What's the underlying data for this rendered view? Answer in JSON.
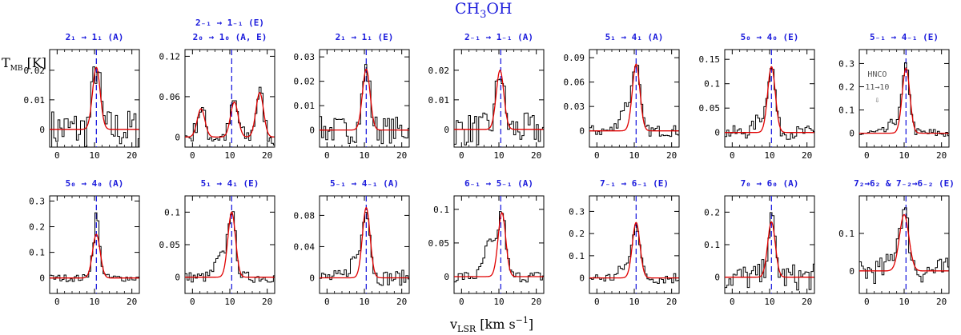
{
  "figure": {
    "title_main": "CH",
    "title_sub": "3",
    "title_end": "OH",
    "ylabel_main": "T",
    "ylabel_sub": "MB",
    "ylabel_unit": " [K]",
    "xlabel_main": "v",
    "xlabel_sub": "LSR",
    "xlabel_unit": " [km s",
    "xlabel_sup": "−1",
    "xlabel_end": "]",
    "colors": {
      "title": "#1a1adc",
      "fit": "#e00000",
      "vline": "#2020e0",
      "spectrum": "#000000"
    }
  },
  "chart_data": [
    {
      "type": "line",
      "title": "2₁ → 1₁ (A)",
      "xlim": [
        -2,
        22
      ],
      "ylim": [
        -0.006,
        0.027
      ],
      "yticks": [
        0,
        0.01,
        0.02
      ],
      "yticklabels": [
        "0",
        "0.01",
        "0.02"
      ],
      "xticks": [
        0,
        10,
        20
      ],
      "vline": 10.5,
      "fit_components": [
        {
          "center": 10.5,
          "amplitude": 0.021,
          "fwhm": 2.4
        }
      ],
      "noise": 0.005
    },
    {
      "type": "line",
      "title": "2₋₁ → 1₋₁ (E)",
      "title2": "2₀ → 1₀ (A, E)",
      "xlim": [
        -2,
        22
      ],
      "ylim": [
        -0.015,
        0.13
      ],
      "yticks": [
        0,
        0.06,
        0.12
      ],
      "yticklabels": [
        "0",
        "0.06",
        "0.12"
      ],
      "xticks": [
        0,
        10,
        20
      ],
      "vline": 10.5,
      "fit_components": [
        {
          "center": 2.3,
          "amplitude": 0.042,
          "fwhm": 2.4
        },
        {
          "center": 11.2,
          "amplitude": 0.052,
          "fwhm": 2.4
        },
        {
          "center": 18.0,
          "amplitude": 0.066,
          "fwhm": 2.4
        }
      ],
      "noise": 0.01
    },
    {
      "type": "line",
      "title": "2₁ → 1₁ (E)",
      "xlim": [
        -2,
        22
      ],
      "ylim": [
        -0.007,
        0.033
      ],
      "yticks": [
        0,
        0.01,
        0.02,
        0.03
      ],
      "yticklabels": [
        "0",
        "0.01",
        "0.02",
        "0.03"
      ],
      "xticks": [
        0,
        10,
        20
      ],
      "vline": 10.5,
      "fit_components": [
        {
          "center": 10.5,
          "amplitude": 0.025,
          "fwhm": 2.4
        }
      ],
      "noise": 0.004
    },
    {
      "type": "line",
      "title": "2₋₁ → 1₋₁ (A)",
      "xlim": [
        -2,
        22
      ],
      "ylim": [
        -0.006,
        0.027
      ],
      "yticks": [
        0,
        0.01,
        0.02
      ],
      "yticklabels": [
        "0",
        "0.01",
        "0.02"
      ],
      "xticks": [
        0,
        10,
        20
      ],
      "vline": 10.5,
      "fit_components": [
        {
          "center": 10.3,
          "amplitude": 0.02,
          "fwhm": 2.4
        }
      ],
      "noise": 0.004
    },
    {
      "type": "line",
      "title": "5₁ → 4₁ (A)",
      "xlim": [
        -2,
        22
      ],
      "ylim": [
        -0.02,
        0.1
      ],
      "yticks": [
        0,
        0.03,
        0.06,
        0.09
      ],
      "yticklabels": [
        "0",
        "0.03",
        "0.06",
        "0.09"
      ],
      "xticks": [
        0,
        10,
        20
      ],
      "vline": 10.5,
      "fit_components": [
        {
          "center": 10.5,
          "amplitude": 0.082,
          "fwhm": 2.4
        }
      ],
      "noise": 0.005,
      "wing": 0.03
    },
    {
      "type": "line",
      "title": "5₀ → 4₀ (E)",
      "xlim": [
        -2,
        22
      ],
      "ylim": [
        -0.03,
        0.17
      ],
      "yticks": [
        0,
        0.05,
        0.1,
        0.15
      ],
      "yticklabels": [
        "0",
        "0.05",
        "0.1",
        "0.15"
      ],
      "xticks": [
        0,
        10,
        20
      ],
      "vline": 10.5,
      "fit_components": [
        {
          "center": 10.5,
          "amplitude": 0.135,
          "fwhm": 2.4
        }
      ],
      "noise": 0.01,
      "wing": 0.03
    },
    {
      "type": "line",
      "title": "5₋₁ → 4₋₁ (E)",
      "xlim": [
        -2,
        22
      ],
      "ylim": [
        -0.06,
        0.36
      ],
      "yticks": [
        0,
        0.1,
        0.2,
        0.3
      ],
      "yticklabels": [
        "0",
        "0.1",
        "0.2",
        "0.3"
      ],
      "xticks": [
        0,
        10,
        20
      ],
      "vline": 10.5,
      "fit_components": [
        {
          "center": 10.5,
          "amplitude": 0.28,
          "fwhm": 2.4
        }
      ],
      "noise": 0.015,
      "wing": 0.05,
      "annotation": {
        "text1": "HNCO",
        "text2": "11→10",
        "x": 2.8,
        "arrow": "⇩"
      }
    },
    {
      "type": "line",
      "title": "5₀ → 4₀ (A)",
      "xlim": [
        -2,
        22
      ],
      "ylim": [
        -0.06,
        0.32
      ],
      "yticks": [
        0,
        0.1,
        0.2,
        0.3
      ],
      "yticklabels": [
        "0",
        "0.1",
        "0.2",
        "0.3"
      ],
      "xticks": [
        0,
        10,
        20
      ],
      "vline": 10.5,
      "fit_components": [
        {
          "center": 10.5,
          "amplitude": 0.17,
          "fwhm": 2.4
        }
      ],
      "noise": 0.01,
      "peak_extra": 0.09
    },
    {
      "type": "line",
      "title": "5₁ → 4₁ (E)",
      "xlim": [
        -2,
        22
      ],
      "ylim": [
        -0.025,
        0.125
      ],
      "yticks": [
        0,
        0.05,
        0.1
      ],
      "yticklabels": [
        "0",
        "0.05",
        "0.1"
      ],
      "xticks": [
        0,
        10,
        20
      ],
      "vline": 10.5,
      "fit_components": [
        {
          "center": 10.5,
          "amplitude": 0.1,
          "fwhm": 2.4
        }
      ],
      "noise": 0.006,
      "wing": 0.03
    },
    {
      "type": "line",
      "title": "5₋₁ → 4₋₁ (A)",
      "xlim": [
        -2,
        22
      ],
      "ylim": [
        -0.02,
        0.105
      ],
      "yticks": [
        0,
        0.04,
        0.08
      ],
      "yticklabels": [
        "0",
        "0.04",
        "0.08"
      ],
      "xticks": [
        0,
        10,
        20
      ],
      "vline": 10.5,
      "fit_components": [
        {
          "center": 10.5,
          "amplitude": 0.09,
          "fwhm": 2.4
        }
      ],
      "noise": 0.007,
      "wing": 0.025
    },
    {
      "type": "line",
      "title": "6₋₁ → 5₋₁ (A)",
      "xlim": [
        -2,
        22
      ],
      "ylim": [
        -0.025,
        0.12
      ],
      "yticks": [
        0,
        0.05,
        0.1
      ],
      "yticklabels": [
        "0",
        "0.05",
        "0.1"
      ],
      "xticks": [
        0,
        10,
        20
      ],
      "vline": 10.5,
      "fit_components": [
        {
          "center": 10.8,
          "amplitude": 0.095,
          "fwhm": 2.4
        }
      ],
      "noise": 0.006,
      "wing": 0.05
    },
    {
      "type": "line",
      "title": "7₋₁ → 6₋₁ (E)",
      "xlim": [
        -2,
        22
      ],
      "ylim": [
        -0.07,
        0.37
      ],
      "yticks": [
        0,
        0.1,
        0.2,
        0.3
      ],
      "yticklabels": [
        "0",
        "0.1",
        "0.2",
        "0.3"
      ],
      "xticks": [
        0,
        10,
        20
      ],
      "vline": 10.5,
      "fit_components": [
        {
          "center": 10.5,
          "amplitude": 0.25,
          "fwhm": 2.4
        }
      ],
      "noise": 0.02,
      "wing": 0.05
    },
    {
      "type": "line",
      "title": "7₀ → 6₀ (A)",
      "xlim": [
        -2,
        22
      ],
      "ylim": [
        -0.05,
        0.25
      ],
      "yticks": [
        0,
        0.1,
        0.2
      ],
      "yticklabels": [
        "0",
        "0.1",
        "0.2"
      ],
      "xticks": [
        0,
        10,
        20
      ],
      "vline": 10.5,
      "fit_components": [
        {
          "center": 10.5,
          "amplitude": 0.17,
          "fwhm": 2.4
        }
      ],
      "noise": 0.03
    },
    {
      "type": "line",
      "title": "7₂→6₂ & 7₋₂→6₋₂ (E)",
      "xlim": [
        -2,
        22
      ],
      "ylim": [
        -0.06,
        0.2
      ],
      "yticks": [
        0,
        0.1
      ],
      "yticklabels": [
        "0",
        "0.1"
      ],
      "xticks": [
        0,
        10,
        20
      ],
      "vline": 10.5,
      "fit_components": [
        {
          "center": 10.0,
          "amplitude": 0.15,
          "fwhm": 3.0
        }
      ],
      "noise": 0.025,
      "wing": 0.04
    }
  ]
}
